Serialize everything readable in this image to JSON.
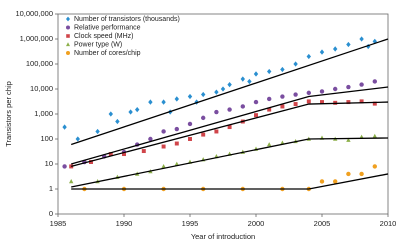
{
  "chart_data": {
    "type": "scatter",
    "xlabel": "Year of introduction",
    "ylabel": "Transistors per chip",
    "xlim": [
      1985,
      2010
    ],
    "xticks": [
      1985,
      1990,
      1995,
      2000,
      2005,
      2010
    ],
    "ylim": [
      0.1,
      10000000
    ],
    "log_y": true,
    "yticks": [
      {
        "value": 0.1,
        "label": "0"
      },
      1,
      10,
      100,
      {
        "value": 1000,
        "label": "1,000"
      },
      {
        "value": 10000,
        "label": "10,000"
      },
      {
        "value": 100000,
        "label": "100,000"
      },
      {
        "value": 1000000,
        "label": "1,000,000"
      },
      {
        "value": 10000000,
        "label": "10,000,000"
      }
    ],
    "legend": "upper left",
    "series": [
      {
        "name": "Number of transistors (thousands)",
        "color": "#2a8fd0",
        "marker": "diamond",
        "x": [
          1985.5,
          1986.5,
          1988,
          1989,
          1989.5,
          1990.5,
          1991,
          1992,
          1993,
          1993.5,
          1994,
          1995,
          1995.5,
          1996,
          1997,
          1997.5,
          1998,
          1999,
          1999.5,
          2000,
          2001,
          2002,
          2003,
          2004,
          2005,
          2006,
          2007,
          2008,
          2008.5,
          2009
        ],
        "values": [
          300,
          100,
          200,
          1000,
          500,
          1200,
          1500,
          3000,
          3000,
          1200,
          4000,
          5000,
          3000,
          6000,
          7500,
          10000,
          15000,
          25000,
          20000,
          40000,
          50000,
          60000,
          100000,
          200000,
          300000,
          400000,
          600000,
          1000000,
          500000,
          800000
        ]
      },
      {
        "name": "Relative performance",
        "color": "#7a4ea0",
        "marker": "circle",
        "x": [
          1985.5,
          1987,
          1988.5,
          1990,
          1991,
          1992,
          1993,
          1994,
          1995,
          1996,
          1997,
          1998,
          1999,
          2000,
          2001,
          2002,
          2003,
          2004,
          2005,
          2006,
          2007,
          2008,
          2009
        ],
        "values": [
          8,
          12,
          20,
          30,
          60,
          100,
          200,
          250,
          400,
          700,
          1200,
          1500,
          2000,
          3000,
          4000,
          5000,
          6000,
          7000,
          8000,
          10000,
          12000,
          15000,
          20000
        ]
      },
      {
        "name": "Clock speed (MHz)",
        "color": "#d0454a",
        "marker": "square",
        "x": [
          1986,
          1987.5,
          1989,
          1990,
          1991.5,
          1993,
          1994,
          1995,
          1996,
          1997,
          1998,
          1999,
          2000,
          2001,
          2002,
          2003,
          2004,
          2005,
          2006,
          2007,
          2008,
          2009
        ],
        "values": [
          8,
          12,
          25,
          25,
          33,
          50,
          66,
          100,
          150,
          200,
          300,
          500,
          900,
          1500,
          2000,
          2500,
          3200,
          3000,
          2800,
          3000,
          3200,
          2600
        ]
      },
      {
        "name": "Power type (W)",
        "color": "#8db04a",
        "marker": "triangle",
        "x": [
          1986,
          1988,
          1989.5,
          1991,
          1992,
          1993,
          1994,
          1995,
          1996,
          1997,
          1998,
          1999,
          2000,
          2001,
          2002,
          2003,
          2004,
          2005,
          2006,
          2007,
          2008,
          2009
        ],
        "values": [
          2,
          2,
          3,
          4,
          5,
          8,
          10,
          12,
          15,
          20,
          25,
          30,
          40,
          60,
          70,
          80,
          100,
          110,
          100,
          90,
          120,
          130
        ]
      },
      {
        "name": "Number of cores/chip",
        "color": "#f0a020",
        "marker": "circle",
        "x": [
          1987,
          1990,
          1993,
          1996,
          1999,
          2002,
          2004,
          2005,
          2006,
          2007,
          2008,
          2009
        ],
        "values": [
          1,
          1,
          1,
          1,
          1,
          1,
          1,
          2,
          2,
          4,
          4,
          8
        ]
      }
    ],
    "trend_lines": [
      {
        "color": "#000000",
        "x": [
          1986,
          2010
        ],
        "values": [
          60,
          1000000
        ]
      },
      {
        "color": "#000000",
        "x": [
          1986,
          2004,
          2010
        ],
        "values": [
          10,
          5000,
          12000
        ]
      },
      {
        "color": "#000000",
        "x": [
          1986,
          2004,
          2010
        ],
        "values": [
          8,
          2500,
          3000
        ]
      },
      {
        "color": "#000000",
        "x": [
          1986,
          2004,
          2010
        ],
        "values": [
          1.2,
          100,
          110
        ]
      },
      {
        "color": "#000000",
        "x": [
          1986,
          2004,
          2010
        ],
        "values": [
          1,
          1,
          4
        ]
      }
    ]
  }
}
